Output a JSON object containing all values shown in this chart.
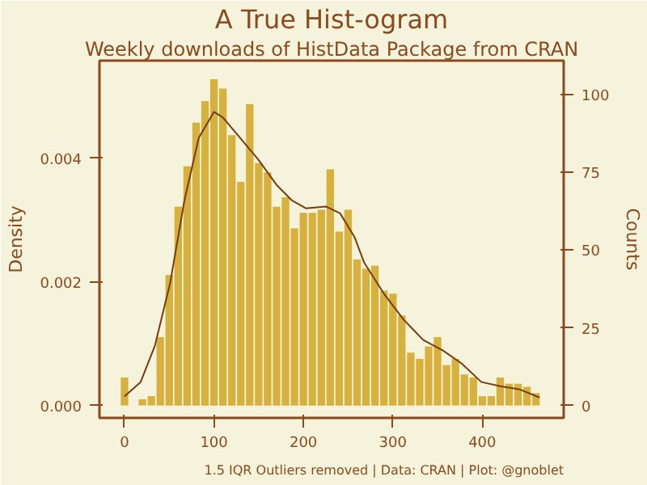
{
  "chart_data": {
    "type": "histogram",
    "title": "A True Hist-ogram",
    "subtitle": "Weekly downloads of HistData Package from CRAN",
    "ylabel": "Density",
    "y2label": "Counts",
    "annotations": [
      "1.5 IQR Outliers removed | Data: CRAN | Plot: @gnoblet"
    ],
    "bins": [
      -5,
      5,
      15,
      25,
      35,
      45,
      55,
      65,
      75,
      85,
      95,
      105,
      115,
      125,
      135,
      145,
      155,
      165,
      175,
      185,
      195,
      205,
      215,
      225,
      235,
      245,
      255,
      265,
      275,
      285,
      295,
      305,
      315,
      325,
      335,
      345,
      355,
      365,
      375,
      385,
      395,
      405,
      415,
      425,
      435,
      445,
      455,
      465
    ],
    "series": [
      {
        "axis": "y2",
        "color": "#d6b13e",
        "values": [
          9,
          0,
          2,
          3,
          22,
          42,
          64,
          77,
          91,
          98,
          105,
          102,
          87,
          72,
          97,
          78,
          75,
          64,
          67,
          57,
          62,
          62,
          63,
          76,
          56,
          63,
          47,
          44,
          45,
          37,
          36,
          29,
          17,
          15,
          19,
          22,
          13,
          15,
          10,
          9,
          3,
          3,
          9,
          7,
          7,
          6,
          4
        ]
      },
      {
        "type": "line",
        "color": "#7a3b10",
        "x": [
          0,
          18,
          34,
          51,
          67,
          83,
          100,
          110,
          127,
          149,
          170,
          187,
          203,
          225,
          241,
          257,
          268,
          290,
          312,
          334,
          356,
          377,
          399,
          421,
          442,
          464
        ],
        "values": [
          0.00015,
          0.00038,
          0.00097,
          0.00198,
          0.00332,
          0.00433,
          0.00475,
          0.00466,
          0.00437,
          0.00399,
          0.00357,
          0.00332,
          0.00319,
          0.00322,
          0.00311,
          0.00273,
          0.00231,
          0.00181,
          0.00139,
          0.00106,
          0.00089,
          0.00068,
          0.00038,
          0.00031,
          0.00026,
          0.00013
        ]
      }
    ],
    "xlim": [
      -28,
      491
    ],
    "xticks": [
      0,
      100,
      200,
      300,
      400
    ],
    "ylim": [
      -0.0002,
      0.00558
    ],
    "yticks": [
      {
        "value": 0,
        "label": "0.000"
      },
      {
        "value": 0.002,
        "label": "0.002"
      },
      {
        "value": 0.004,
        "label": "0.004"
      }
    ],
    "y2lim": [
      -4,
      111
    ],
    "y2ticks": [
      0,
      25,
      50,
      75,
      100
    ],
    "grid": false
  }
}
